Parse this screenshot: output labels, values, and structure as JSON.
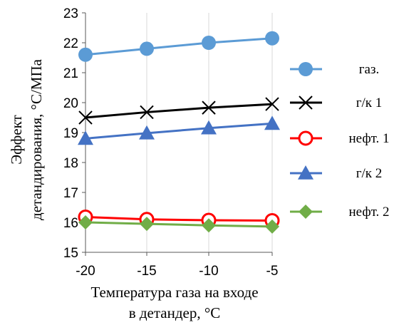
{
  "chart_data": {
    "type": "line",
    "x": [
      -20,
      -15,
      -10,
      -5
    ],
    "xlabel": [
      "Температура газа на входе",
      "в детандер, °С"
    ],
    "ylabel": [
      "Эффект",
      "детандирования, °С/МПа"
    ],
    "xlim": [
      -20,
      -5
    ],
    "ylim": [
      15,
      23
    ],
    "yticks": [
      15,
      16,
      17,
      18,
      19,
      20,
      21,
      22,
      23
    ],
    "xticks": [
      -20,
      -15,
      -10,
      -5
    ],
    "grid": "vertical",
    "legend_position": "right",
    "series": [
      {
        "name": "газ.",
        "values": [
          21.6,
          21.8,
          22.0,
          22.15
        ],
        "color": "#5b9bd5",
        "marker": "circle"
      },
      {
        "name": "г/к 1",
        "values": [
          19.5,
          19.68,
          19.83,
          19.95
        ],
        "color": "#000000",
        "marker": "x"
      },
      {
        "name": "нефт. 1",
        "values": [
          16.18,
          16.1,
          16.07,
          16.06
        ],
        "color": "#ff0000",
        "marker": "circle-open"
      },
      {
        "name": "г/к 2",
        "values": [
          18.8,
          18.98,
          19.15,
          19.3
        ],
        "color": "#4472c4",
        "marker": "triangle"
      },
      {
        "name": "нефт. 2",
        "values": [
          16.0,
          15.95,
          15.9,
          15.86
        ],
        "color": "#70ad47",
        "marker": "diamond"
      }
    ]
  }
}
